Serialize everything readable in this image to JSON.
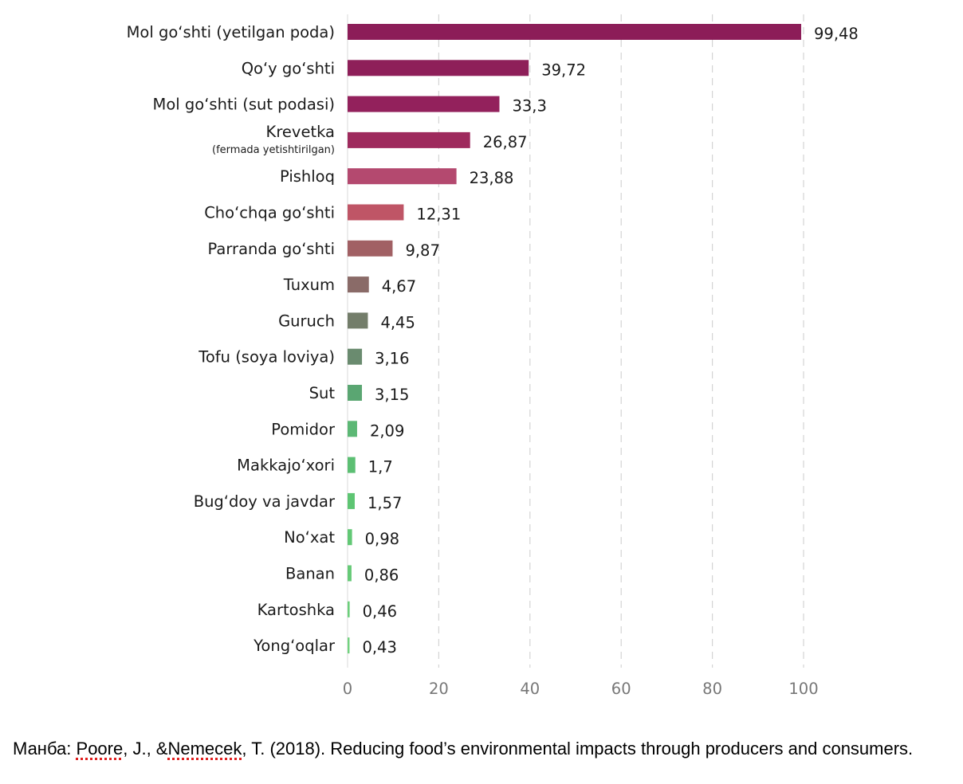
{
  "chart_data": {
    "type": "bar",
    "orientation": "horizontal",
    "categories": [
      {
        "label": "Mol go‘shti (yetilgan poda)",
        "sublabel": ""
      },
      {
        "label": "Qo‘y go‘shti",
        "sublabel": ""
      },
      {
        "label": "Mol go‘shti (sut podasi)",
        "sublabel": ""
      },
      {
        "label": "Krevetka",
        "sublabel": "(fermada yetishtirilgan)"
      },
      {
        "label": "Pishloq",
        "sublabel": ""
      },
      {
        "label": "Cho‘chqa go‘shti",
        "sublabel": ""
      },
      {
        "label": "Parranda go‘shti",
        "sublabel": ""
      },
      {
        "label": "Tuxum",
        "sublabel": ""
      },
      {
        "label": "Guruch",
        "sublabel": ""
      },
      {
        "label": "Tofu (soya loviya)",
        "sublabel": ""
      },
      {
        "label": "Sut",
        "sublabel": ""
      },
      {
        "label": "Pomidor",
        "sublabel": ""
      },
      {
        "label": "Makkajo‘xori",
        "sublabel": ""
      },
      {
        "label": "Bug‘doy va javdar",
        "sublabel": ""
      },
      {
        "label": "No‘xat",
        "sublabel": ""
      },
      {
        "label": "Banan",
        "sublabel": ""
      },
      {
        "label": "Kartoshka",
        "sublabel": ""
      },
      {
        "label": "Yong‘oqlar",
        "sublabel": ""
      }
    ],
    "values": [
      99.48,
      39.72,
      33.3,
      26.87,
      23.88,
      12.31,
      9.87,
      4.67,
      4.45,
      3.16,
      3.15,
      2.09,
      1.7,
      1.57,
      0.98,
      0.86,
      0.46,
      0.43
    ],
    "value_labels": [
      "99,48",
      "39,72",
      "33,3",
      "26,87",
      "23,88",
      "12,31",
      "9,87",
      "4,67",
      "4,45",
      "3,16",
      "3,15",
      "2,09",
      "1,7",
      "1,57",
      "0,98",
      "0,86",
      "0,46",
      "0,43"
    ],
    "colors": [
      "#8c1d58",
      "#8e1f59",
      "#93215c",
      "#9e2a5d",
      "#b4496f",
      "#bf5566",
      "#a16064",
      "#8a6b68",
      "#737d6a",
      "#6a8b6f",
      "#5aa672",
      "#5cb875",
      "#5cbf73",
      "#5ec573",
      "#62c875",
      "#66ca77",
      "#6ccf7b",
      "#72d27f"
    ],
    "xlim": [
      0,
      100
    ],
    "xticks": [
      "0",
      "20",
      "40",
      "60",
      "80",
      "100"
    ],
    "grid": true,
    "title": "",
    "xlabel": "",
    "ylabel": ""
  },
  "source": {
    "prefix": "Манба: ",
    "author1": "Poore",
    "mid": ", J., &",
    "author2": "Nemecek",
    "rest": ", T. (2018). Reducing food’s environmental impacts through producers and consumers."
  }
}
